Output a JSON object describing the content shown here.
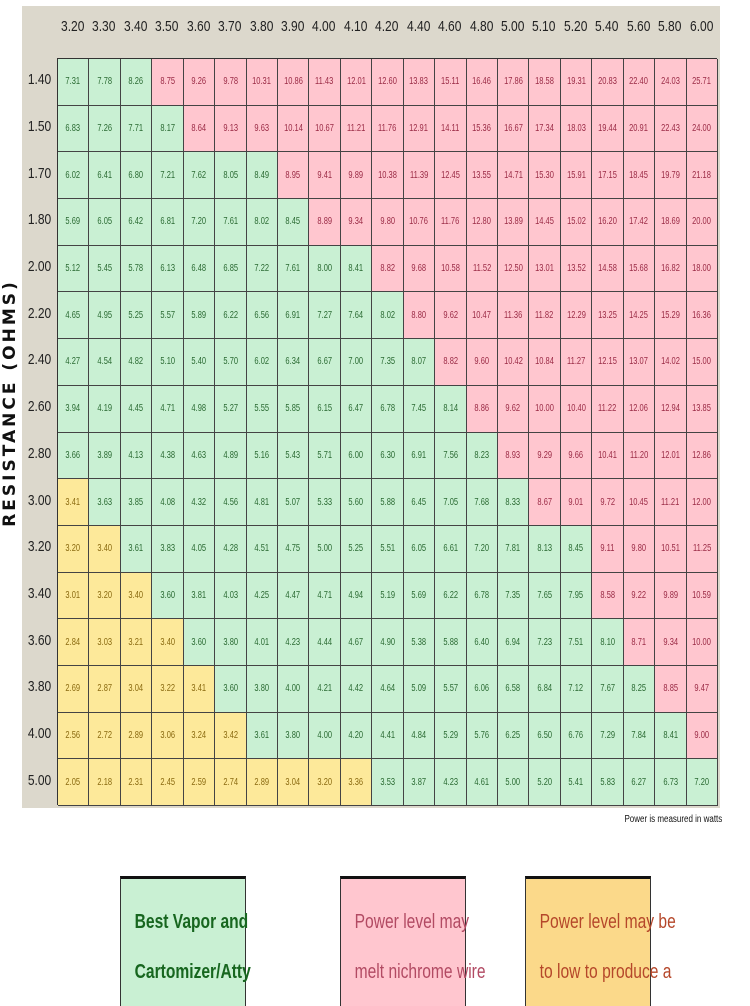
{
  "chart_data": {
    "type": "table",
    "ylabel": "RESISTANCE (OHMS)",
    "note": "Power is measured in watts",
    "columns": [
      "3.20",
      "3.30",
      "3.40",
      "3.50",
      "3.60",
      "3.70",
      "3.80",
      "3.90",
      "4.00",
      "4.10",
      "4.20",
      "4.40",
      "4.60",
      "4.80",
      "5.00",
      "5.10",
      "5.20",
      "5.40",
      "5.60",
      "5.80",
      "6.00"
    ],
    "colors": {
      "G": "#c9f0d3",
      "P": "#ffc6cf",
      "Y": "#fde99a"
    },
    "rows": [
      {
        "label": "1.40",
        "values": [
          "7.31",
          "7.78",
          "8.26",
          "8.75",
          "9.26",
          "9.78",
          "10.31",
          "10.86",
          "11.43",
          "12.01",
          "12.60",
          "13.83",
          "15.11",
          "16.46",
          "17.86",
          "18.58",
          "19.31",
          "20.83",
          "22.40",
          "24.03",
          "25.71"
        ],
        "classes": "GGGPPPPPPPPPPPPPPPPPP"
      },
      {
        "label": "1.50",
        "values": [
          "6.83",
          "7.26",
          "7.71",
          "8.17",
          "8.64",
          "9.13",
          "9.63",
          "10.14",
          "10.67",
          "11.21",
          "11.76",
          "12.91",
          "14.11",
          "15.36",
          "16.67",
          "17.34",
          "18.03",
          "19.44",
          "20.91",
          "22.43",
          "24.00"
        ],
        "classes": "GGGGPPPPPPPPPPPPPPPPP"
      },
      {
        "label": "1.70",
        "values": [
          "6.02",
          "6.41",
          "6.80",
          "7.21",
          "7.62",
          "8.05",
          "8.49",
          "8.95",
          "9.41",
          "9.89",
          "10.38",
          "11.39",
          "12.45",
          "13.55",
          "14.71",
          "15.30",
          "15.91",
          "17.15",
          "18.45",
          "19.79",
          "21.18"
        ],
        "classes": "GGGGGGGPPPPPPPPPPPPPP"
      },
      {
        "label": "1.80",
        "values": [
          "5.69",
          "6.05",
          "6.42",
          "6.81",
          "7.20",
          "7.61",
          "8.02",
          "8.45",
          "8.89",
          "9.34",
          "9.80",
          "10.76",
          "11.76",
          "12.80",
          "13.89",
          "14.45",
          "15.02",
          "16.20",
          "17.42",
          "18.69",
          "20.00"
        ],
        "classes": "GGGGGGGGPPPPPPPPPPPPP"
      },
      {
        "label": "2.00",
        "values": [
          "5.12",
          "5.45",
          "5.78",
          "6.13",
          "6.48",
          "6.85",
          "7.22",
          "7.61",
          "8.00",
          "8.41",
          "8.82",
          "9.68",
          "10.58",
          "11.52",
          "12.50",
          "13.01",
          "13.52",
          "14.58",
          "15.68",
          "16.82",
          "18.00"
        ],
        "classes": "GGGGGGGGGGPPPPPPPPPPP"
      },
      {
        "label": "2.20",
        "values": [
          "4.65",
          "4.95",
          "5.25",
          "5.57",
          "5.89",
          "6.22",
          "6.56",
          "6.91",
          "7.27",
          "7.64",
          "8.02",
          "8.80",
          "9.62",
          "10.47",
          "11.36",
          "11.82",
          "12.29",
          "13.25",
          "14.25",
          "15.29",
          "16.36"
        ],
        "classes": "GGGGGGGGGGGPPPPPPPPPP"
      },
      {
        "label": "2.40",
        "values": [
          "4.27",
          "4.54",
          "4.82",
          "5.10",
          "5.40",
          "5.70",
          "6.02",
          "6.34",
          "6.67",
          "7.00",
          "7.35",
          "8.07",
          "8.82",
          "9.60",
          "10.42",
          "10.84",
          "11.27",
          "12.15",
          "13.07",
          "14.02",
          "15.00"
        ],
        "classes": "GGGGGGGGGGGGPPPPPPPPP"
      },
      {
        "label": "2.60",
        "values": [
          "3.94",
          "4.19",
          "4.45",
          "4.71",
          "4.98",
          "5.27",
          "5.55",
          "5.85",
          "6.15",
          "6.47",
          "6.78",
          "7.45",
          "8.14",
          "8.86",
          "9.62",
          "10.00",
          "10.40",
          "11.22",
          "12.06",
          "12.94",
          "13.85"
        ],
        "classes": "GGGGGGGGGGGGGPPPPPPPP"
      },
      {
        "label": "2.80",
        "values": [
          "3.66",
          "3.89",
          "4.13",
          "4.38",
          "4.63",
          "4.89",
          "5.16",
          "5.43",
          "5.71",
          "6.00",
          "6.30",
          "6.91",
          "7.56",
          "8.23",
          "8.93",
          "9.29",
          "9.66",
          "10.41",
          "11.20",
          "12.01",
          "12.86"
        ],
        "classes": "GGGGGGGGGGGGGGPPPPPPP"
      },
      {
        "label": "3.00",
        "values": [
          "3.41",
          "3.63",
          "3.85",
          "4.08",
          "4.32",
          "4.56",
          "4.81",
          "5.07",
          "5.33",
          "5.60",
          "5.88",
          "6.45",
          "7.05",
          "7.68",
          "8.33",
          "8.67",
          "9.01",
          "9.72",
          "10.45",
          "11.21",
          "12.00"
        ],
        "classes": "YGGGGGGGGGGGGGGPPPPPP"
      },
      {
        "label": "3.20",
        "values": [
          "3.20",
          "3.40",
          "3.61",
          "3.83",
          "4.05",
          "4.28",
          "4.51",
          "4.75",
          "5.00",
          "5.25",
          "5.51",
          "6.05",
          "6.61",
          "7.20",
          "7.81",
          "8.13",
          "8.45",
          "9.11",
          "9.80",
          "10.51",
          "11.25"
        ],
        "classes": "YYGGGGGGGGGGGGGGGPPPP"
      },
      {
        "label": "3.40",
        "values": [
          "3.01",
          "3.20",
          "3.40",
          "3.60",
          "3.81",
          "4.03",
          "4.25",
          "4.47",
          "4.71",
          "4.94",
          "5.19",
          "5.69",
          "6.22",
          "6.78",
          "7.35",
          "7.65",
          "7.95",
          "8.58",
          "9.22",
          "9.89",
          "10.59"
        ],
        "classes": "YYYGGGGGGGGGGGGGGPPPP"
      },
      {
        "label": "3.60",
        "values": [
          "2.84",
          "3.03",
          "3.21",
          "3.40",
          "3.60",
          "3.80",
          "4.01",
          "4.23",
          "4.44",
          "4.67",
          "4.90",
          "5.38",
          "5.88",
          "6.40",
          "6.94",
          "7.23",
          "7.51",
          "8.10",
          "8.71",
          "9.34",
          "10.00"
        ],
        "classes": "YYYYGGGGGGGGGGGGGGPPP"
      },
      {
        "label": "3.80",
        "values": [
          "2.69",
          "2.87",
          "3.04",
          "3.22",
          "3.41",
          "3.60",
          "3.80",
          "4.00",
          "4.21",
          "4.42",
          "4.64",
          "5.09",
          "5.57",
          "6.06",
          "6.58",
          "6.84",
          "7.12",
          "7.67",
          "8.25",
          "8.85",
          "9.47"
        ],
        "classes": "YYYYYGGGGGGGGGGGGGGPP"
      },
      {
        "label": "4.00",
        "values": [
          "2.56",
          "2.72",
          "2.89",
          "3.06",
          "3.24",
          "3.42",
          "3.61",
          "3.80",
          "4.00",
          "4.20",
          "4.41",
          "4.84",
          "5.29",
          "5.76",
          "6.25",
          "6.50",
          "6.76",
          "7.29",
          "7.84",
          "8.41",
          "9.00"
        ],
        "classes": "YYYYYYGGGGGGGGGGGGGGP"
      },
      {
        "label": "5.00",
        "values": [
          "2.05",
          "2.18",
          "2.31",
          "2.45",
          "2.59",
          "2.74",
          "2.89",
          "3.04",
          "3.20",
          "3.36",
          "3.53",
          "3.87",
          "4.23",
          "4.61",
          "5.00",
          "5.20",
          "5.41",
          "5.83",
          "6.27",
          "6.73",
          "7.20"
        ],
        "classes": "YYYYYYYYYYGGGGGGGGGGG"
      }
    ],
    "legend": [
      {
        "key": "G",
        "lines": [
          "Best Vapor and",
          "Cartomizer/Atty"
        ]
      },
      {
        "key": "P",
        "lines": [
          "Power level may",
          "melt nichrome wire"
        ]
      },
      {
        "key": "Y",
        "lines": [
          "Power level may be",
          "to low to produce a"
        ]
      }
    ]
  }
}
